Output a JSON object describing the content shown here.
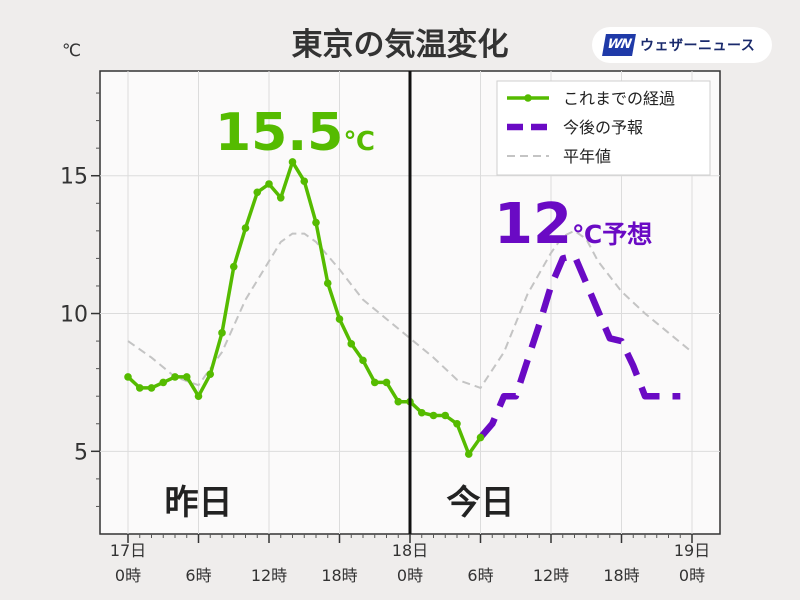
{
  "title": "東京の気温変化",
  "logo": {
    "mark": "WN",
    "text": "ウェザーニュース"
  },
  "y_unit": "℃",
  "chart_data": {
    "type": "line",
    "title": "東京の気温変化",
    "x_unit": "hours since 17日0時",
    "xlim": [
      0,
      48
    ],
    "ylim": [
      2,
      18.8
    ],
    "y_ticks": [
      5,
      10,
      15
    ],
    "x_ticks": [
      {
        "x": 0,
        "day": "17日",
        "hour": "0時"
      },
      {
        "x": 6,
        "day": "",
        "hour": "6時"
      },
      {
        "x": 12,
        "day": "",
        "hour": "12時"
      },
      {
        "x": 18,
        "day": "",
        "hour": "18時"
      },
      {
        "x": 24,
        "day": "18日",
        "hour": "0時"
      },
      {
        "x": 30,
        "day": "",
        "hour": "6時"
      },
      {
        "x": 36,
        "day": "",
        "hour": "12時"
      },
      {
        "x": 42,
        "day": "",
        "hour": "18時"
      },
      {
        "x": 48,
        "day": "19日",
        "hour": "0時"
      }
    ],
    "grid": true,
    "legend_position": "top-right",
    "divider_x": 24,
    "series": [
      {
        "name": "これまでの経過",
        "color": "#55bb00",
        "style": "solid-markers",
        "x": [
          0,
          1,
          2,
          3,
          4,
          5,
          6,
          7,
          8,
          9,
          10,
          11,
          12,
          13,
          14,
          15,
          16,
          17,
          18,
          19,
          20,
          21,
          22,
          23,
          24,
          25,
          26,
          27,
          28,
          29,
          30
        ],
        "y": [
          7.7,
          7.3,
          7.3,
          7.5,
          7.7,
          7.7,
          7.0,
          7.8,
          9.3,
          11.7,
          13.1,
          14.4,
          14.7,
          14.2,
          15.5,
          14.8,
          13.3,
          11.1,
          9.8,
          8.9,
          8.3,
          7.5,
          7.5,
          6.8,
          6.8,
          6.4,
          6.3,
          6.3,
          6.0,
          4.9,
          5.5
        ]
      },
      {
        "name": "今後の予報",
        "color": "#6a0ac4",
        "style": "dashed-thick",
        "x": [
          30,
          31,
          32,
          33,
          34,
          35,
          36,
          37,
          38,
          39,
          40,
          41,
          42,
          43,
          44,
          45,
          46,
          47
        ],
        "y": [
          5.5,
          6.0,
          7.0,
          7.0,
          8.3,
          9.6,
          11.0,
          12.0,
          12.1,
          11.1,
          10.1,
          9.1,
          9.0,
          8.1,
          7.0,
          7.0,
          7.0,
          7.0
        ]
      },
      {
        "name": "平年値",
        "color": "#c4c4c4",
        "style": "dashed-thin",
        "x": [
          0,
          2,
          4,
          6,
          8,
          10,
          12,
          13,
          14,
          15,
          16,
          18,
          20,
          22,
          24,
          26,
          28,
          30,
          32,
          34,
          36,
          37,
          38,
          39,
          40,
          42,
          44,
          46,
          48
        ],
        "y": [
          9.0,
          8.4,
          7.7,
          7.4,
          8.6,
          10.5,
          11.9,
          12.6,
          12.9,
          12.9,
          12.6,
          11.6,
          10.5,
          9.8,
          9.1,
          8.4,
          7.6,
          7.3,
          8.6,
          10.7,
          12.2,
          12.8,
          13.0,
          12.7,
          11.9,
          10.8,
          10.0,
          9.3,
          8.6
        ]
      }
    ],
    "annotations": [
      {
        "value": "15.5",
        "unit": "℃",
        "suffix": "",
        "color": "#55bb00"
      },
      {
        "value": "12",
        "unit": "℃",
        "suffix": "予想",
        "color": "#6a0ac4"
      }
    ],
    "period_labels": [
      "昨日",
      "今日"
    ]
  }
}
